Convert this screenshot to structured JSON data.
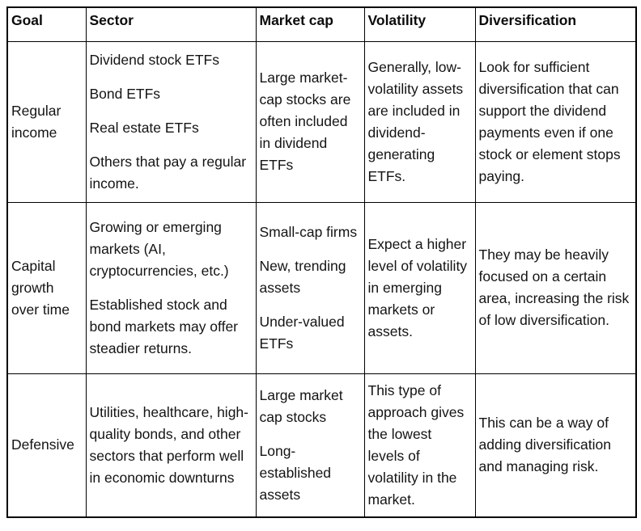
{
  "table": {
    "headers": [
      "Goal",
      "Sector",
      "Market cap",
      "Volatility",
      "Diversification"
    ],
    "rows": [
      {
        "goal": "Regular income",
        "sector": [
          "Dividend stock ETFs",
          "Bond ETFs",
          "Real estate ETFs",
          "Others that pay a regular income."
        ],
        "market_cap": [
          "Large market-cap stocks are often included in dividend ETFs"
        ],
        "volatility": [
          "Generally, low-volatility assets are included in dividend-generating ETFs."
        ],
        "diversification": [
          "Look for sufficient diversification that can support the dividend payments even if one stock or element stops paying."
        ]
      },
      {
        "goal": "Capital growth over time",
        "sector": [
          "Growing or emerging markets (AI, cryptocurrencies, etc.)",
          "Established stock and bond markets may offer steadier returns."
        ],
        "market_cap": [
          "Small-cap firms",
          "New, trending assets",
          "Under-valued ETFs"
        ],
        "volatility": [
          "Expect a higher level of volatility in emerging markets or assets."
        ],
        "diversification": [
          "They may be heavily focused on a certain area, increasing the risk of low diversification."
        ]
      },
      {
        "goal": "Defensive",
        "sector": [
          "Utilities, healthcare, high-quality bonds, and other sectors that perform well in economic downturns"
        ],
        "market_cap": [
          "Large market cap stocks",
          "Long-established assets"
        ],
        "volatility": [
          "This type of approach gives the lowest levels of volatility in the market."
        ],
        "diversification": [
          "This can be a way of adding diversification and managing risk."
        ]
      }
    ],
    "colors": {
      "border": "#000000",
      "text": "#141414",
      "background": "#ffffff"
    }
  }
}
